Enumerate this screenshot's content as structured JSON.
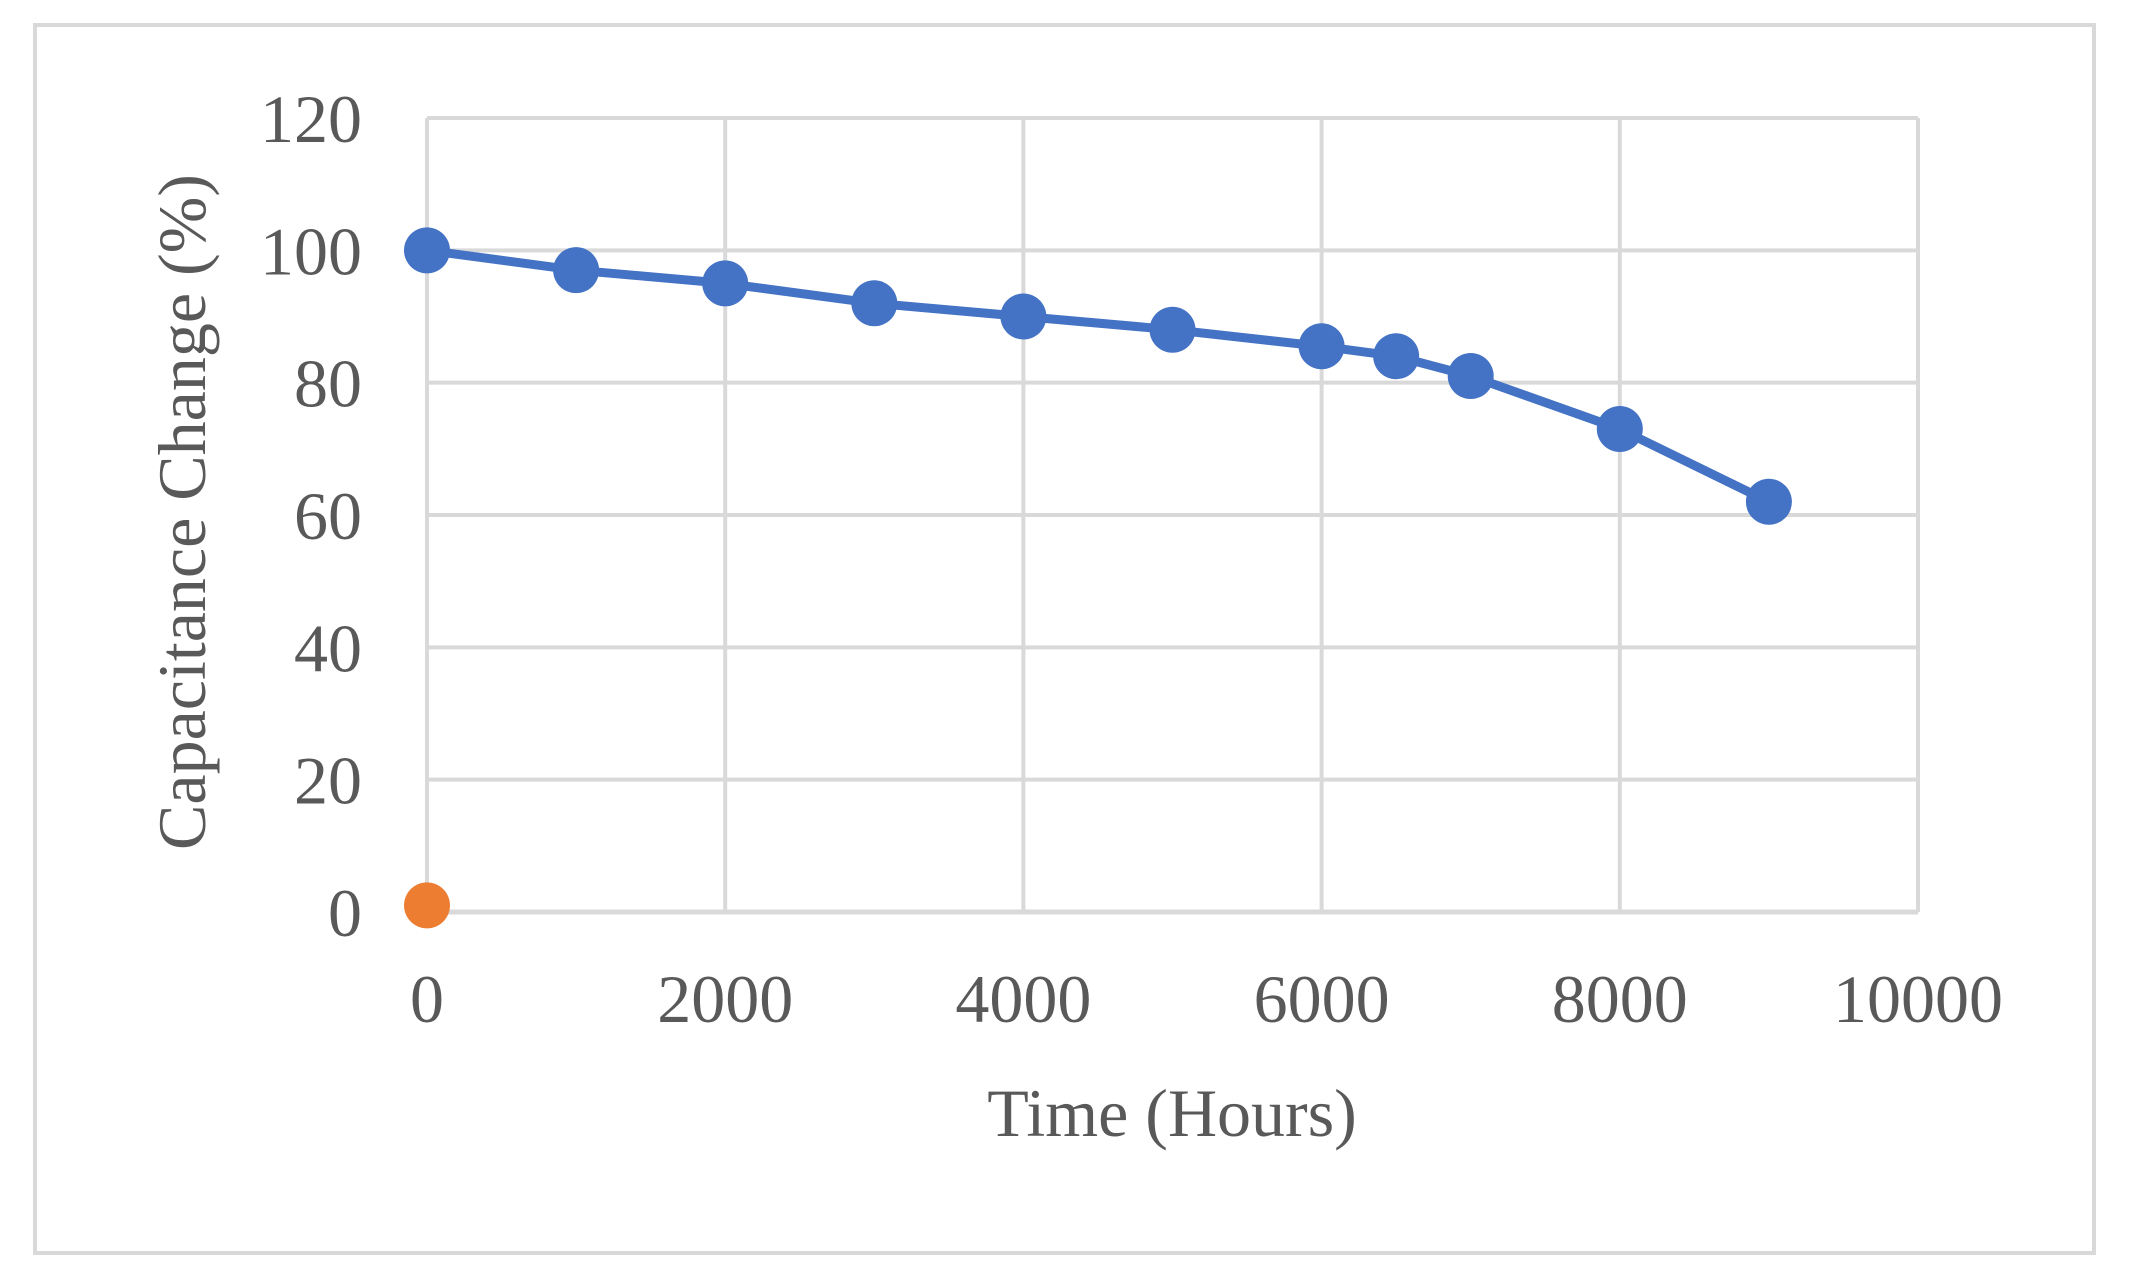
{
  "chart_data": {
    "type": "scatter",
    "title": "",
    "xlabel": "Time (Hours)",
    "ylabel": "Capacitance Change (%)",
    "xlim": [
      0,
      10000
    ],
    "ylim": [
      0,
      120
    ],
    "x_ticks": [
      "0",
      "2000",
      "4000",
      "6000",
      "8000",
      "10000"
    ],
    "y_ticks": [
      "0",
      "20",
      "40",
      "60",
      "80",
      "100",
      "120"
    ],
    "grid": true,
    "legend": "none",
    "series": [
      {
        "color": "#4472c4",
        "line": true,
        "x": [
          0,
          1000,
          2000,
          3000,
          4000,
          5000,
          6000,
          6500,
          7000,
          8000,
          9000
        ],
        "y": [
          100,
          97,
          95,
          92,
          90,
          88,
          85.5,
          84,
          81,
          73,
          62
        ]
      },
      {
        "color": "#ed7d31",
        "line": false,
        "x": [
          0
        ],
        "y": [
          1
        ]
      }
    ]
  }
}
